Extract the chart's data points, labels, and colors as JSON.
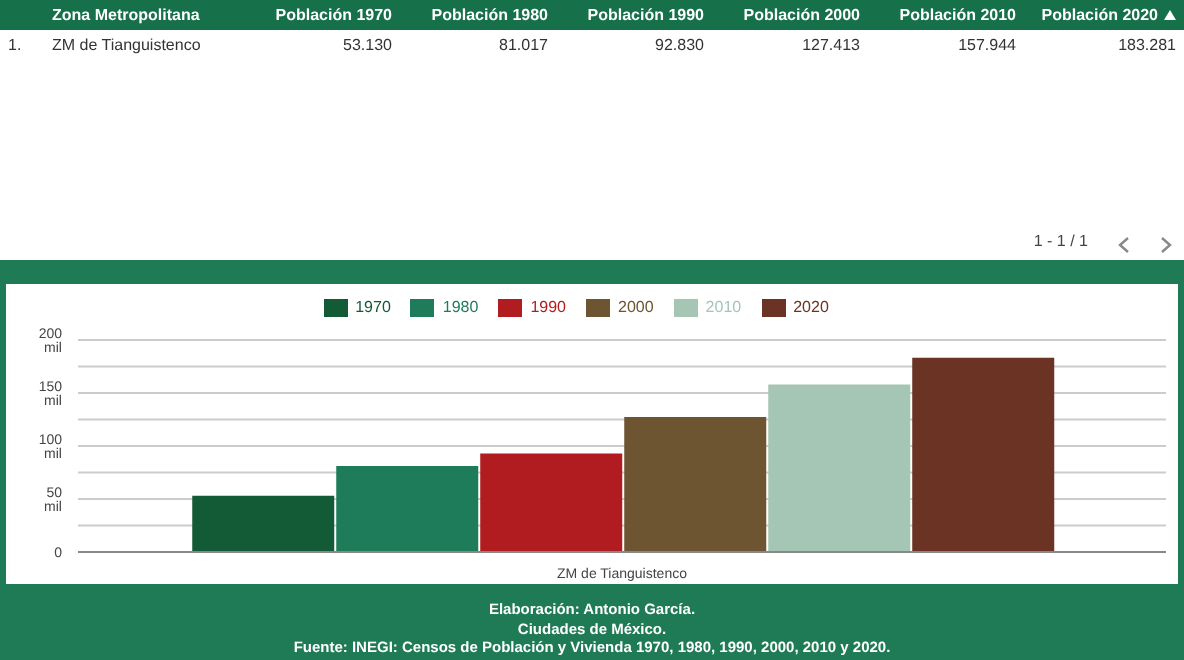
{
  "chart_data": {
    "type": "bar",
    "categories": [
      "ZM de Tianguistenco"
    ],
    "series": [
      {
        "name": "1970",
        "color": "#135b36",
        "values": [
          53.13
        ]
      },
      {
        "name": "1980",
        "color": "#1f7c5b",
        "values": [
          81.017
        ]
      },
      {
        "name": "1990",
        "color": "#b01c1f",
        "values": [
          92.83
        ]
      },
      {
        "name": "2000",
        "color": "#6c5530",
        "values": [
          127.413
        ]
      },
      {
        "name": "2010",
        "color": "#a5c5b5",
        "values": [
          157.944
        ]
      },
      {
        "name": "2020",
        "color": "#6b3323",
        "values": [
          183.281
        ]
      }
    ],
    "ylim": [
      0,
      200
    ],
    "yticks": [
      0,
      {
        "value": 25,
        "label": null
      },
      {
        "value": 50,
        "label": "50 mil"
      },
      {
        "value": 75,
        "label": null
      },
      {
        "value": 100,
        "label": "100 mil"
      },
      {
        "value": 125,
        "label": null
      },
      {
        "value": 150,
        "label": "150 mil"
      },
      {
        "value": 175,
        "label": null
      },
      {
        "value": 200,
        "label": "200 mil"
      }
    ],
    "grid": "y",
    "legend": "top",
    "annotations": [
      "Zona Metropolitana",
      "Población 1970",
      "Población 1980",
      "Población 1990",
      "Población 2000",
      "Población 2010",
      "Población 2020",
      "1.",
      "53.130",
      "81.017",
      "92.830",
      "127.413",
      "157.944",
      "183.281",
      "1 - 1 / 1",
      "Elaboración: Antonio García.",
      "Ciudades de México.",
      "Fuente: INEGI: Censos de Población y Vivienda 1970, 1980, 1990, 2000, 2010 y 2020."
    ]
  }
}
